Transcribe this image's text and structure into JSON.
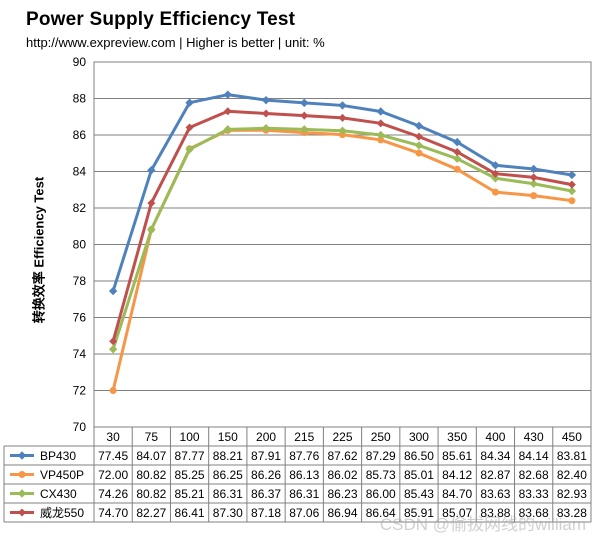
{
  "chart_data": {
    "type": "line",
    "title": "Power Supply Efficiency Test",
    "subtitle": "http://www.expreview.com | Higher is better | unit: %",
    "ylabel": "转换效率 Efficiency Test",
    "xlabel": "",
    "ylim": [
      70,
      90
    ],
    "yticks": [
      70,
      72,
      74,
      76,
      78,
      80,
      82,
      84,
      86,
      88,
      90
    ],
    "categories": [
      "30",
      "75",
      "100",
      "150",
      "200",
      "215",
      "225",
      "250",
      "300",
      "350",
      "400",
      "430",
      "450"
    ],
    "grid": true,
    "legend": "table-bottom",
    "series": [
      {
        "name": "BP430",
        "color": "#4f81bd",
        "values": [
          77.45,
          84.07,
          87.77,
          88.21,
          87.91,
          87.76,
          87.62,
          87.29,
          86.5,
          85.61,
          84.34,
          84.14,
          83.81
        ]
      },
      {
        "name": "VP450P",
        "color": "#f79646",
        "values": [
          72.0,
          80.82,
          85.25,
          86.25,
          86.26,
          86.13,
          86.02,
          85.73,
          85.01,
          84.12,
          82.87,
          82.68,
          82.4
        ]
      },
      {
        "name": "CX430",
        "color": "#9bbb59",
        "values": [
          74.26,
          80.82,
          85.21,
          86.31,
          86.37,
          86.31,
          86.23,
          86.0,
          85.43,
          84.7,
          83.63,
          83.33,
          82.93
        ]
      },
      {
        "name": "威龙550",
        "color": "#c0504d",
        "values": [
          74.7,
          82.27,
          86.41,
          87.3,
          87.18,
          87.06,
          86.94,
          86.64,
          85.91,
          85.07,
          83.88,
          83.68,
          83.28
        ]
      }
    ]
  },
  "watermark": "CSDN @偷拔网线的william"
}
